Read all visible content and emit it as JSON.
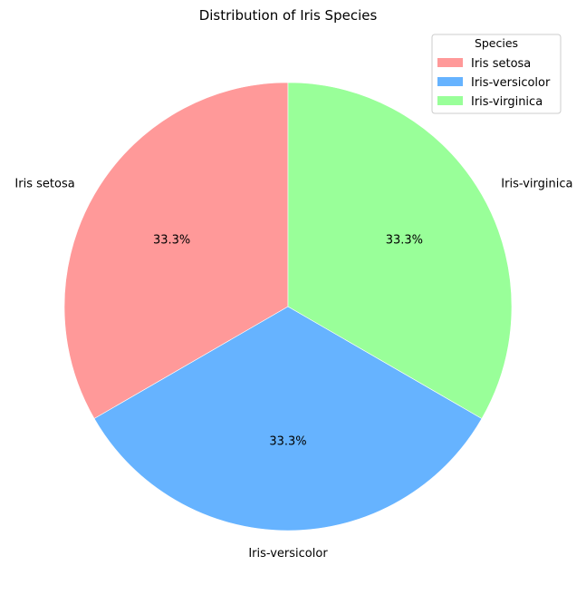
{
  "chart_data": {
    "type": "pie",
    "title": "Distribution of Iris Species",
    "categories": [
      "Iris setosa",
      "Iris-versicolor",
      "Iris-virginica"
    ],
    "values": [
      33.3,
      33.3,
      33.3
    ],
    "percent_labels": [
      "33.3%",
      "33.3%",
      "33.3%"
    ],
    "colors": [
      "#ff9999",
      "#66b3ff",
      "#99ff99"
    ],
    "start_angle_deg": 90,
    "direction": "counterclockwise",
    "legend": {
      "title": "Species",
      "entries": [
        "Iris setosa",
        "Iris-versicolor",
        "Iris-virginica"
      ],
      "placement": "top-right"
    }
  }
}
